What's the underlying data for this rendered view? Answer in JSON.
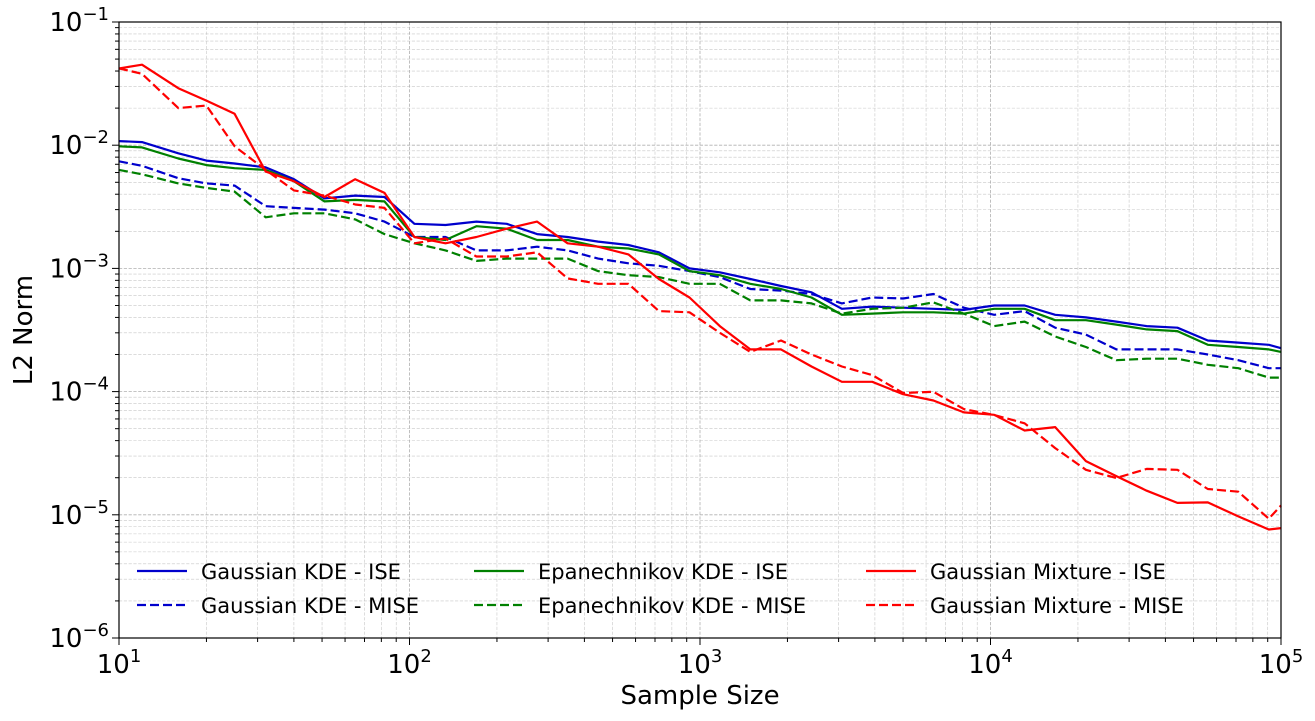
{
  "chart_data": {
    "type": "line",
    "xscale": "log",
    "yscale": "log",
    "xlabel": "Sample Size",
    "ylabel": "L2 Norm",
    "xlim": [
      10,
      100000
    ],
    "ylim": [
      1e-06,
      0.1
    ],
    "x_ticks": [
      {
        "base": "10",
        "exp": "1"
      },
      {
        "base": "10",
        "exp": "2"
      },
      {
        "base": "10",
        "exp": "3"
      },
      {
        "base": "10",
        "exp": "4"
      },
      {
        "base": "10",
        "exp": "5"
      }
    ],
    "y_ticks": [
      {
        "base": "10",
        "exp": "−6"
      },
      {
        "base": "10",
        "exp": "−5"
      },
      {
        "base": "10",
        "exp": "−4"
      },
      {
        "base": "10",
        "exp": "−3"
      },
      {
        "base": "10",
        "exp": "−2"
      },
      {
        "base": "10",
        "exp": "−1"
      }
    ],
    "grid": true,
    "legend": "lower-left, 3 columns",
    "x": [
      10,
      12,
      16,
      20,
      25,
      32,
      40,
      51,
      65,
      82,
      104,
      133,
      170,
      216,
      275,
      350,
      446,
      567,
      722,
      920,
      1170,
      1490,
      1900,
      2420,
      3080,
      3920,
      5000,
      6360,
      8100,
      10300,
      13100,
      16700,
      21300,
      27100,
      34500,
      44000,
      56000,
      71300,
      90800,
      100000
    ],
    "series": [
      {
        "name": "Gaussian KDE - ISE",
        "color": "#0000cc",
        "dash": false,
        "values": [
          0.0108,
          0.0106,
          0.0086,
          0.0075,
          0.0071,
          0.0066,
          0.0053,
          0.0037,
          0.0039,
          0.0038,
          0.0023,
          0.00225,
          0.0024,
          0.0023,
          0.0019,
          0.0018,
          0.00165,
          0.00155,
          0.00135,
          0.001,
          0.00093,
          0.00082,
          0.00072,
          0.00064,
          0.00047,
          0.00049,
          0.00048,
          0.00047,
          0.00046,
          0.0005,
          0.0005,
          0.00042,
          0.0004,
          0.00037,
          0.00034,
          0.00033,
          0.00026,
          0.00025,
          0.00024,
          0.000225
        ]
      },
      {
        "name": "Gaussian KDE - MISE",
        "color": "#0000cc",
        "dash": true,
        "values": [
          0.0074,
          0.0068,
          0.0054,
          0.0049,
          0.0047,
          0.0032,
          0.0031,
          0.003,
          0.0028,
          0.0024,
          0.0018,
          0.0018,
          0.0014,
          0.0014,
          0.0015,
          0.0014,
          0.0012,
          0.0011,
          0.00105,
          0.00095,
          0.00085,
          0.00068,
          0.00066,
          0.00062,
          0.00052,
          0.00058,
          0.00057,
          0.00062,
          0.00048,
          0.00042,
          0.00045,
          0.00033,
          0.00029,
          0.00022,
          0.00022,
          0.00022,
          0.0002,
          0.00018,
          0.000155,
          0.000155
        ]
      },
      {
        "name": "Epanechnikov KDE - ISE",
        "color": "#008000",
        "dash": false,
        "values": [
          0.0098,
          0.0096,
          0.0078,
          0.0069,
          0.0065,
          0.0063,
          0.0051,
          0.0035,
          0.0036,
          0.0035,
          0.0018,
          0.0017,
          0.0022,
          0.0021,
          0.0017,
          0.0017,
          0.0015,
          0.00145,
          0.0013,
          0.00095,
          0.00088,
          0.00075,
          0.00068,
          0.00058,
          0.00042,
          0.00043,
          0.00044,
          0.00044,
          0.00043,
          0.00047,
          0.00047,
          0.00038,
          0.00038,
          0.00035,
          0.00032,
          0.00031,
          0.00024,
          0.00023,
          0.00022,
          0.00021
        ]
      },
      {
        "name": "Epanechnikov KDE - MISE",
        "color": "#008000",
        "dash": true,
        "values": [
          0.0063,
          0.0058,
          0.0049,
          0.0045,
          0.0042,
          0.0026,
          0.0028,
          0.0028,
          0.0025,
          0.0019,
          0.0016,
          0.0014,
          0.00115,
          0.0012,
          0.0012,
          0.0012,
          0.00095,
          0.00088,
          0.00085,
          0.00075,
          0.00075,
          0.00055,
          0.00055,
          0.00052,
          0.00043,
          0.00047,
          0.00048,
          0.00053,
          0.00043,
          0.00034,
          0.00037,
          0.00028,
          0.00023,
          0.00018,
          0.000185,
          0.000185,
          0.000165,
          0.000155,
          0.00013,
          0.00013
        ]
      },
      {
        "name": "Gaussian Mixture - ISE",
        "color": "#ff0000",
        "dash": false,
        "values": [
          0.042,
          0.045,
          0.029,
          0.023,
          0.018,
          0.0061,
          0.0051,
          0.0038,
          0.0053,
          0.0041,
          0.0018,
          0.0016,
          0.0018,
          0.0021,
          0.0024,
          0.0016,
          0.0015,
          0.0013,
          0.00082,
          0.00058,
          0.00034,
          0.00022,
          0.00022,
          0.00016,
          0.00012,
          0.00012,
          9.52e-05,
          8.47e-05,
          6.78e-05,
          6.48e-05,
          4.83e-05,
          5.15e-05,
          2.73e-05,
          2.06e-05,
          1.57e-05,
          1.25e-05,
          1.26e-05,
          9.7e-06,
          7.6e-06,
          7.8e-06
        ]
      },
      {
        "name": "Gaussian Mixture - MISE",
        "color": "#ff0000",
        "dash": true,
        "values": [
          0.042,
          0.038,
          0.02,
          0.021,
          0.0098,
          0.0063,
          0.0043,
          0.0039,
          0.0033,
          0.0031,
          0.0016,
          0.00175,
          0.00125,
          0.00125,
          0.00135,
          0.00083,
          0.00075,
          0.00075,
          0.00045,
          0.00044,
          0.0003,
          0.00021,
          0.00026,
          0.0002,
          0.00016,
          0.000136,
          9.75e-05,
          9.97e-05,
          7.21e-05,
          6.46e-05,
          5.53e-05,
          3.48e-05,
          2.32e-05,
          1.99e-05,
          2.36e-05,
          2.32e-05,
          1.62e-05,
          1.54e-05,
          9.3e-06,
          1.19e-05
        ]
      }
    ]
  }
}
